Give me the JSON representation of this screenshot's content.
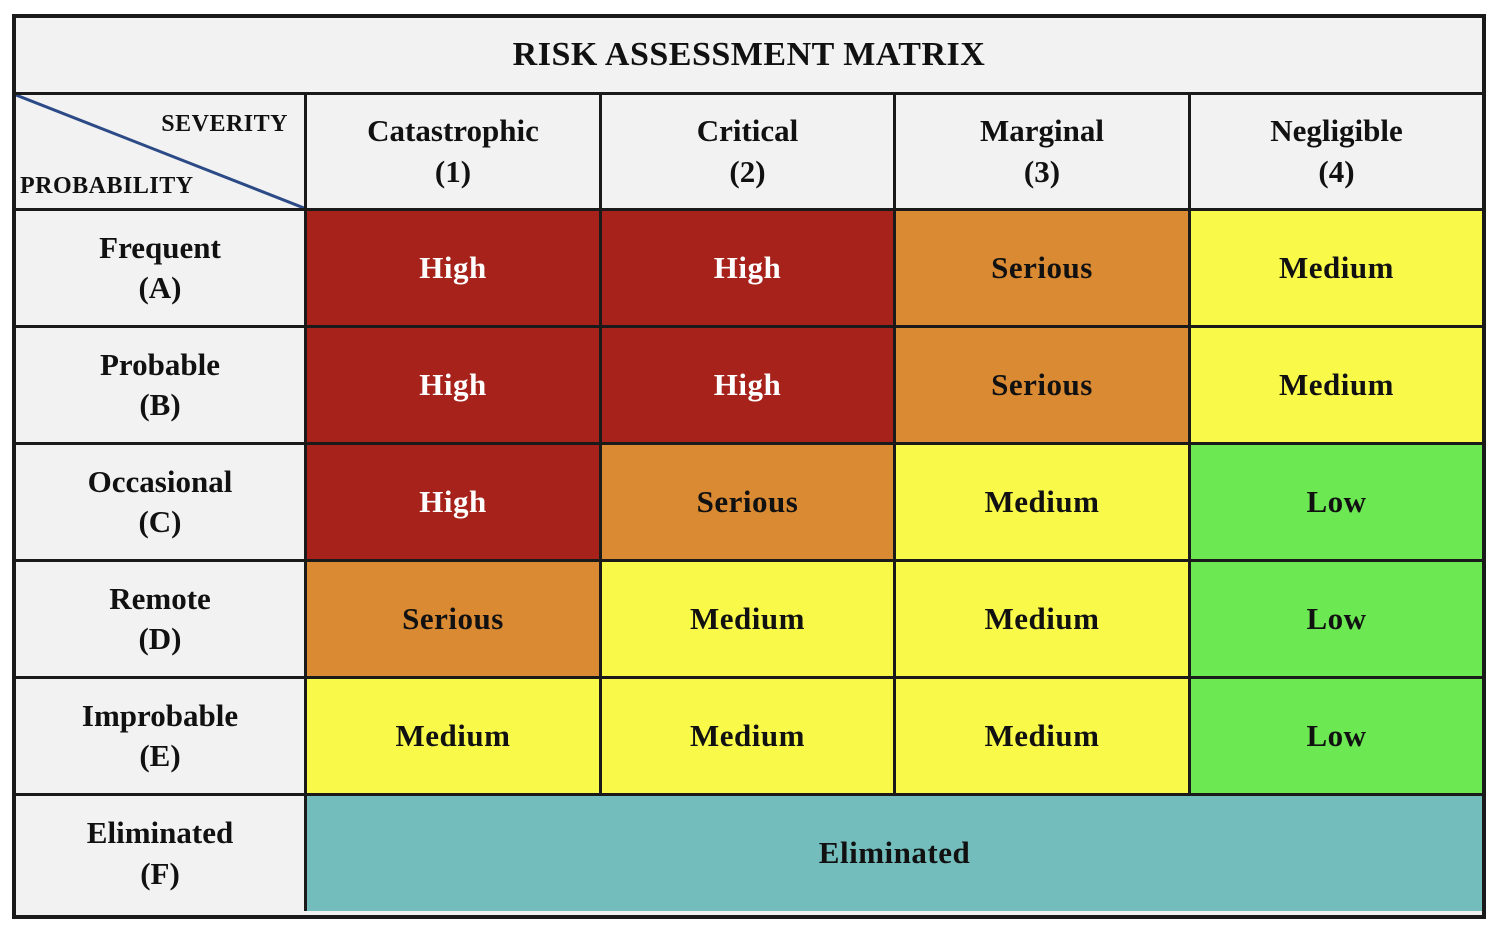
{
  "title": "RISK ASSESSMENT MATRIX",
  "corner": {
    "severity_label": "SEVERITY",
    "probability_label": "PROBABILITY",
    "line_color": "#2c4a86"
  },
  "columns": [
    {
      "name": "Catastrophic",
      "code": "(1)"
    },
    {
      "name": "Critical",
      "code": "(2)"
    },
    {
      "name": "Marginal",
      "code": "(3)"
    },
    {
      "name": "Negligible",
      "code": "(4)"
    }
  ],
  "rows": [
    {
      "name": "Frequent",
      "code": "(A)",
      "cells": [
        "High",
        "High",
        "Serious",
        "Medium"
      ]
    },
    {
      "name": "Probable",
      "code": "(B)",
      "cells": [
        "High",
        "High",
        "Serious",
        "Medium"
      ]
    },
    {
      "name": "Occasional",
      "code": "(C)",
      "cells": [
        "High",
        "Serious",
        "Medium",
        "Low"
      ]
    },
    {
      "name": "Remote",
      "code": "(D)",
      "cells": [
        "Serious",
        "Medium",
        "Medium",
        "Low"
      ]
    },
    {
      "name": "Improbable",
      "code": "(E)",
      "cells": [
        "Medium",
        "Medium",
        "Medium",
        "Low"
      ]
    },
    {
      "name": "Eliminated",
      "code": "(F)",
      "span_label": "Eliminated"
    }
  ],
  "level_colors": {
    "High": "#a6221a",
    "Serious": "#d98a33",
    "Medium": "#f9f94a",
    "Low": "#6ce852",
    "Eliminated": "#73bdbd"
  }
}
